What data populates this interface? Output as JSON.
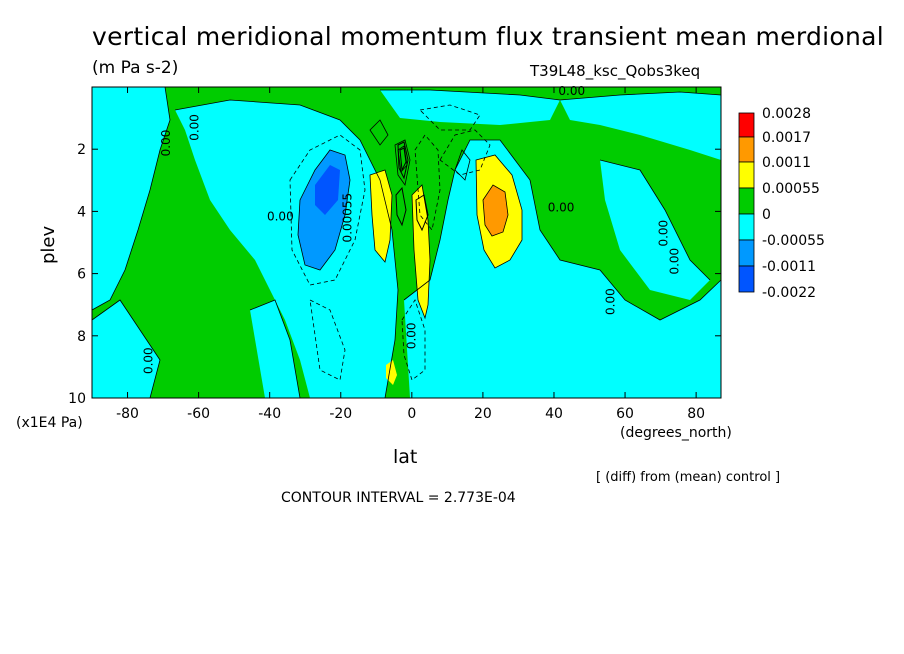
{
  "title": "vertical meridional momentum flux transient mean merdional",
  "units": "(m Pa s-2)",
  "experiment": "T39L48_ksc_Qobs3keq",
  "note": "[ (diff) from (mean) control ]",
  "contour_interval": "CONTOUR INTERVAL = 2.773E-04",
  "colors": {
    "level_0028": "#ff0000",
    "level_0017": "#ff9900",
    "level_0011": "#ffff00",
    "level_00055": "#00cc00",
    "level_0": "#00ffff",
    "level_m00055": "#0099ff",
    "level_m0011": "#0055ff",
    "frame": "#000000"
  },
  "chart_data": {
    "type": "heatmap",
    "xlabel": "lat",
    "xunit": "(degrees_north)",
    "ylabel": "plev",
    "yunit": "(x1E4 Pa)",
    "xlim": [
      -90,
      87
    ],
    "ylim": [
      0,
      10
    ],
    "y_reversed": true,
    "xticks": [
      -80,
      -60,
      -40,
      -20,
      0,
      20,
      40,
      60,
      80
    ],
    "yticks": [
      2,
      4,
      6,
      8,
      10
    ],
    "colorbar": {
      "labels": [
        "0.0028",
        "0.0017",
        "0.0011",
        "0.00055",
        "0",
        "-0.00055",
        "-0.0011",
        "-0.0022"
      ]
    },
    "contour_labels": [
      {
        "text": "0.00",
        "lat": -60,
        "plev": 1.3
      },
      {
        "text": "0.00",
        "lat": -68,
        "plev": 1.8
      },
      {
        "text": "0.00",
        "lat": -37,
        "plev": 4.3
      },
      {
        "text": "0.00055",
        "lat": -17,
        "plev": 4.2
      },
      {
        "text": "0.00",
        "lat": -73,
        "plev": 8.8
      },
      {
        "text": "0.00",
        "lat": 42,
        "plev": 4.0
      },
      {
        "text": "0.00",
        "lat": 57,
        "plev": 6.9
      },
      {
        "text": "0.00",
        "lat": 72,
        "plev": 4.7
      },
      {
        "text": "0.00",
        "lat": 75,
        "plev": 5.6
      },
      {
        "text": "0.00",
        "lat": 1,
        "plev": 8.0
      },
      {
        "text": "0.00",
        "lat": 45,
        "plev": 0.25
      }
    ]
  }
}
